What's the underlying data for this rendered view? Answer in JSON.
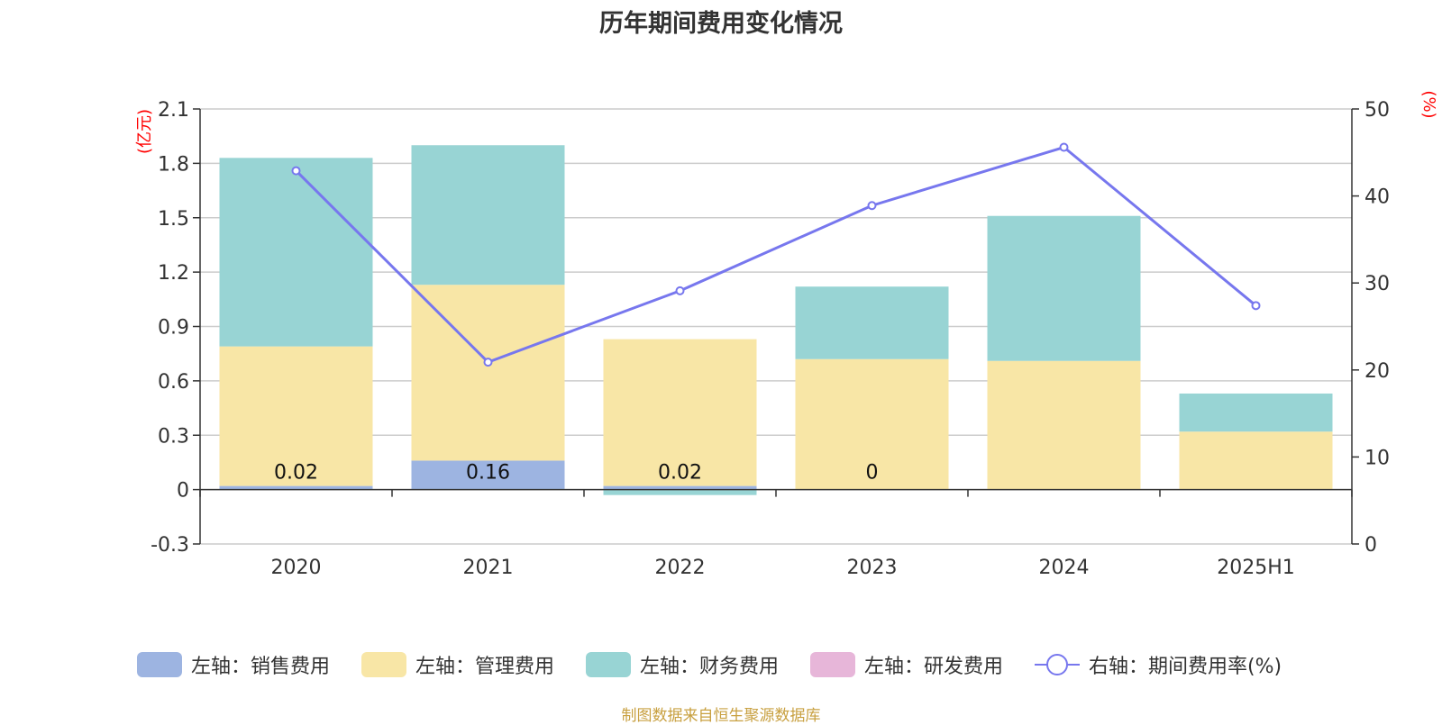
{
  "colors": {
    "sales": "#9db4e1",
    "admin": "#f8e6a6",
    "finance": "#98d4d4",
    "rd": "#e7b6d9",
    "rate": "#7777ee",
    "axis_unit": "#ff0000",
    "source": "#c8a040"
  },
  "chart_data": {
    "type": "bar",
    "title": "历年期间费用变化情况",
    "categories": [
      "2020",
      "2021",
      "2022",
      "2023",
      "2024",
      "2025H1"
    ],
    "left_axis": {
      "unit": "(亿元)",
      "ylim": [
        -0.3,
        2.1
      ],
      "ticks": [
        "2.1",
        "1.8",
        "1.5",
        "1.2",
        "0.9",
        "0.6",
        "0.3",
        "0",
        "-0.3"
      ]
    },
    "right_axis": {
      "unit": "(%)",
      "ylim": [
        0,
        50
      ],
      "ticks": [
        "50",
        "40",
        "30",
        "20",
        "10",
        "0"
      ]
    },
    "series": [
      {
        "name": "左轴：销售费用",
        "axis": "left",
        "kind": "bar",
        "color_key": "sales",
        "values": [
          0.02,
          0.16,
          0.02,
          0,
          0,
          0
        ]
      },
      {
        "name": "左轴：管理费用",
        "axis": "left",
        "kind": "bar",
        "color_key": "admin",
        "values": [
          0.77,
          0.97,
          0.81,
          0.72,
          0.71,
          0.32
        ]
      },
      {
        "name": "左轴：财务费用",
        "axis": "left",
        "kind": "bar",
        "color_key": "finance",
        "values": [
          1.04,
          0.77,
          -0.03,
          0.4,
          0.8,
          0.21
        ]
      },
      {
        "name": "左轴：研发费用",
        "axis": "left",
        "kind": "bar",
        "color_key": "rd",
        "values": [
          0,
          0,
          0,
          0,
          0,
          0
        ]
      },
      {
        "name": "右轴：期间费用率(%)",
        "axis": "right",
        "kind": "line",
        "color_key": "rate",
        "values": [
          42.9,
          20.9,
          29.1,
          38.9,
          45.6,
          27.4
        ]
      }
    ],
    "data_labels": [
      {
        "category_index": 0,
        "text": "0.02"
      },
      {
        "category_index": 1,
        "text": "0.16"
      },
      {
        "category_index": 2,
        "text": "0.02"
      },
      {
        "category_index": 3,
        "text": "0"
      }
    ],
    "grid": true,
    "legend_position": "bottom"
  },
  "source_note": "制图数据来自恒生聚源数据库"
}
